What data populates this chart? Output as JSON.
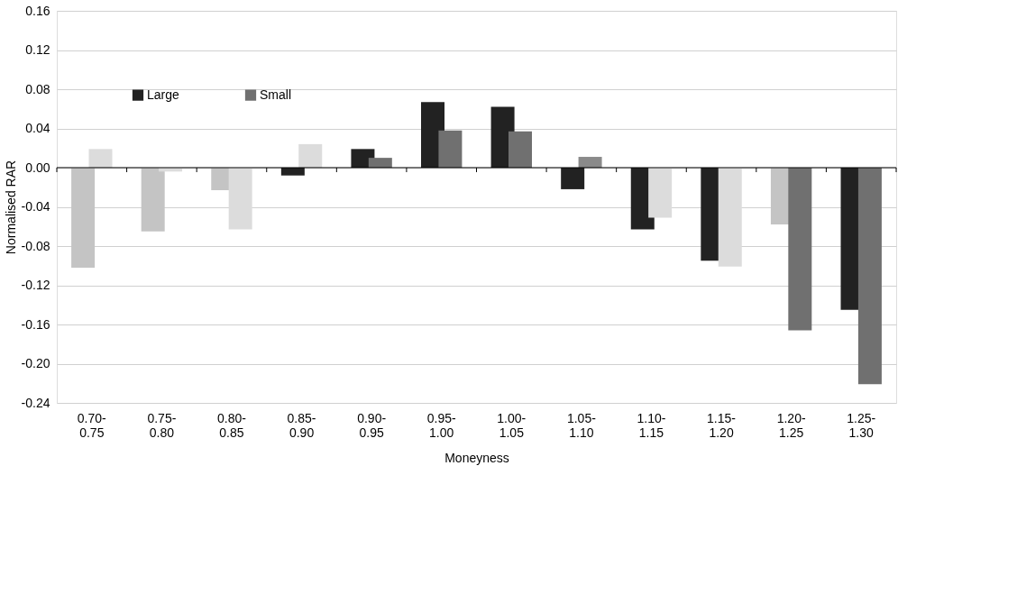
{
  "chart_data": {
    "type": "bar",
    "xlabel": "Moneyness",
    "ylabel": "Normalised RAR",
    "categories": [
      "0.70-0.75",
      "0.75-0.80",
      "0.80-0.85",
      "0.85-0.90",
      "0.90-0.95",
      "0.95-1.00",
      "1.00-1.05",
      "1.05-1.10",
      "1.10-1.15",
      "1.15-1.20",
      "1.20-1.25",
      "1.25-1.30"
    ],
    "series": [
      {
        "name": "Large",
        "color": "#222222",
        "values": [
          -0.102,
          -0.065,
          -0.023,
          -0.008,
          0.019,
          0.067,
          0.062,
          -0.022,
          -0.063,
          -0.095,
          -0.058,
          -0.145
        ],
        "colors": [
          "#c4c4c4",
          "#c4c4c4",
          "#c4c4c4",
          "#222222",
          "#222222",
          "#222222",
          "#222222",
          "#222222",
          "#222222",
          "#222222",
          "#c4c4c4",
          "#222222"
        ]
      },
      {
        "name": "Small",
        "color": "#707070",
        "values": [
          0.019,
          -0.004,
          -0.063,
          0.024,
          0.01,
          0.038,
          0.037,
          0.011,
          -0.051,
          -0.101,
          -0.166,
          -0.221
        ],
        "colors": [
          "#dcdcdc",
          "#dcdcdc",
          "#dcdcdc",
          "#dcdcdc",
          "#707070",
          "#707070",
          "#707070",
          "#8a8a8a",
          "#dcdcdc",
          "#dcdcdc",
          "#707070",
          "#707070"
        ]
      }
    ],
    "ylim": [
      -0.24,
      0.16
    ],
    "yticks": [
      {
        "value": -0.24,
        "label": "-0.24"
      },
      {
        "value": -0.2,
        "label": "-0.20"
      },
      {
        "value": -0.16,
        "label": "-0.16"
      },
      {
        "value": -0.12,
        "label": "-0.12"
      },
      {
        "value": -0.08,
        "label": "-0.08"
      },
      {
        "value": -0.04,
        "label": "-0.04"
      },
      {
        "value": 0,
        "label": "0.00"
      },
      {
        "value": 0.04,
        "label": "0.04"
      },
      {
        "value": 0.08,
        "label": "0.08"
      },
      {
        "value": 0.12,
        "label": "0.12"
      },
      {
        "value": 0.16,
        "label": "0.16"
      }
    ],
    "grid": "y",
    "legend": "top left"
  }
}
